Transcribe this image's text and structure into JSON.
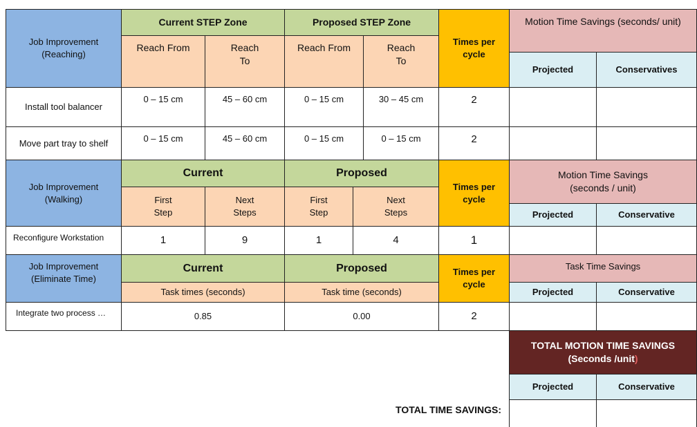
{
  "reaching": {
    "job_label": "Job Improvement\n(Reaching)",
    "current_zone": "Current STEP Zone",
    "proposed_zone": "Proposed STEP Zone",
    "times_per_cycle": "Times per cycle",
    "motion_savings": "Motion Time Savings (seconds/ unit)",
    "reach_from": "Reach From",
    "reach_to": "Reach\nTo",
    "projected": "Projected",
    "conservative": "Conservatives",
    "rows": [
      {
        "task": "Install tool balancer",
        "cur_from": "0 – 15 cm",
        "cur_to": "45 – 60 cm",
        "prop_from": "0 – 15 cm",
        "prop_to": "30 – 45 cm",
        "times": "2",
        "projected": "",
        "conservative": ""
      },
      {
        "task": "Move part tray to shelf",
        "cur_from": "0 – 15 cm",
        "cur_to": "45 – 60 cm",
        "prop_from": "0 – 15 cm",
        "prop_to": "0 – 15 cm",
        "times": "2",
        "projected": "",
        "conservative": ""
      }
    ]
  },
  "walking": {
    "job_label": "Job Improvement\n(Walking)",
    "current": "Current",
    "proposed": "Proposed",
    "times_per_cycle": "Times per cycle",
    "motion_savings": "Motion Time Savings\n(seconds / unit)",
    "first_step": "First\nStep",
    "next_steps": "Next\nSteps",
    "projected": "Projected",
    "conservative": "Conservative",
    "row": {
      "task": "Reconfigure Workstation",
      "cur_first": "1",
      "cur_next": "9",
      "prop_first": "1",
      "prop_next": "4",
      "times": "1",
      "projected": "",
      "conservative": ""
    }
  },
  "eliminate": {
    "job_label": "Job Improvement\n(Eliminate Time)",
    "current": "Current",
    "proposed": "Proposed",
    "times_per_cycle": "Times per cycle",
    "task_savings": "Task Time Savings",
    "task_times": "Task times (seconds)",
    "task_time": "Task time (seconds)",
    "projected": "Projected",
    "conservative": "Conservative",
    "row": {
      "task": "Integrate two process …",
      "current": "0.85",
      "proposed": "0.00",
      "times": "2",
      "projected": "",
      "conservative": ""
    }
  },
  "totals": {
    "motion_header_line1": "TOTAL MOTION TIME SAVINGS",
    "motion_header_line2": "(Seconds /unit",
    "motion_header_paren": ")",
    "projected": "Projected",
    "conservative": "Conservative",
    "total_time_label": "TOTAL TIME SAVINGS:",
    "projected_value": "",
    "conservative_value": ""
  }
}
